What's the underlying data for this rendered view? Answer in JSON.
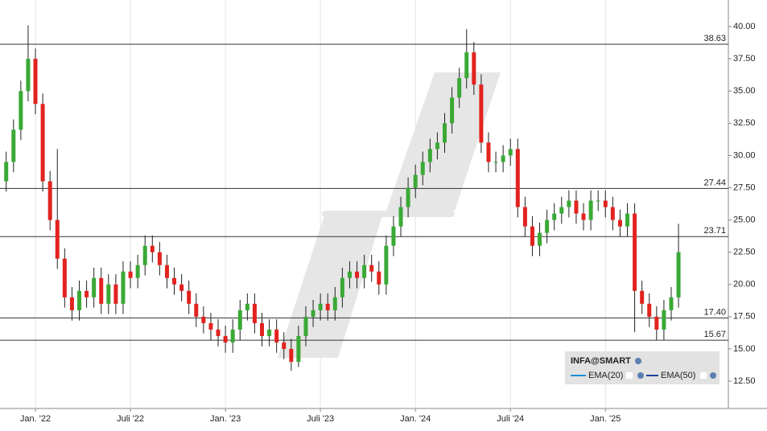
{
  "chart_data": {
    "type": "candlestick",
    "legend_title": "INFA@SMART",
    "indicators": [
      {
        "name": "EMA(20)",
        "color": "#1e8fd8"
      },
      {
        "name": "EMA(50)",
        "color": "#1f3f9e"
      }
    ],
    "up_color": "#3aa935",
    "down_color": "#e2231f",
    "categories": [
      null,
      null,
      null,
      null,
      "Jan. '22",
      null,
      null,
      null,
      null,
      null,
      null,
      null,
      null,
      null,
      null,
      null,
      null,
      "Juli '22",
      null,
      null,
      null,
      null,
      null,
      null,
      null,
      null,
      null,
      null,
      null,
      null,
      "Jan. '23",
      null,
      null,
      null,
      null,
      null,
      null,
      null,
      null,
      null,
      null,
      null,
      null,
      "Juli '23",
      null,
      null,
      null,
      null,
      null,
      null,
      null,
      null,
      null,
      null,
      null,
      null,
      "Jan. '24",
      null,
      null,
      null,
      null,
      null,
      null,
      null,
      null,
      null,
      null,
      null,
      null,
      "Juli '24",
      null,
      null,
      null,
      null,
      null,
      null,
      null,
      null,
      null,
      null,
      null,
      null,
      "Jan. '25",
      null,
      null,
      null,
      null,
      null,
      null,
      null,
      null,
      null,
      null
    ],
    "open": [
      28,
      29.5,
      32,
      35,
      37.5,
      34,
      28,
      25,
      22,
      19,
      18,
      19.5,
      19,
      20.5,
      18.5,
      20,
      18.5,
      21,
      20.5,
      21.5,
      23,
      22.5,
      21.5,
      20.5,
      20,
      19.5,
      18.5,
      17.5,
      17,
      16.5,
      16,
      15.5,
      16.5,
      18,
      18.5,
      17,
      16,
      16.5,
      15.5,
      15,
      14,
      16,
      17.5,
      18,
      18.5,
      18,
      19,
      20.5,
      21,
      20.5,
      21.5,
      21,
      20,
      23,
      24.5,
      26,
      27.5,
      28.5,
      29.5,
      30.5,
      31,
      32.5,
      34.5,
      36,
      38,
      35.5,
      31,
      29.5,
      29.5,
      30,
      30.5,
      26,
      24.5,
      23,
      24,
      25,
      25.5,
      26,
      26.5,
      25.5,
      25,
      26.5,
      26.5,
      26,
      25,
      24.5,
      25.5,
      19.5,
      18.5,
      17.5,
      16.5,
      18,
      19
    ],
    "high": [
      30.3,
      32.8,
      35.8,
      40.1,
      38.3,
      34.8,
      28.8,
      30.5,
      22.8,
      19.8,
      20.3,
      20.3,
      21.3,
      21.3,
      20.8,
      20.8,
      21.8,
      21.8,
      22.3,
      23.8,
      23.8,
      23.3,
      22.3,
      21.3,
      20.8,
      20.3,
      19.3,
      18.3,
      17.8,
      17.3,
      16.8,
      17.3,
      18.8,
      19.3,
      19.3,
      17.8,
      17.3,
      17.3,
      16.3,
      15.8,
      16.8,
      18.3,
      18.8,
      19.3,
      19.3,
      19.8,
      21.3,
      21.8,
      21.8,
      22.3,
      22.3,
      21.8,
      23.8,
      25.3,
      26.8,
      28.3,
      29.3,
      30.3,
      31.3,
      31.8,
      33.3,
      35.3,
      36.8,
      39.8,
      38.8,
      36.3,
      31.8,
      30.3,
      30.8,
      31.3,
      31.3,
      26.8,
      25.3,
      24.8,
      25.8,
      26.3,
      26.8,
      27.3,
      27.3,
      26.3,
      27.3,
      27.3,
      27.3,
      26.8,
      25.8,
      26.3,
      26.3,
      20.3,
      19.3,
      18.3,
      18.8,
      19.8,
      24.7
    ],
    "low": [
      27.2,
      28.7,
      31.2,
      34.2,
      33.2,
      27.2,
      24.2,
      21.2,
      18.2,
      17.2,
      17.2,
      18.2,
      18.2,
      17.7,
      17.7,
      17.7,
      17.7,
      19.7,
      19.7,
      20.7,
      21.7,
      20.7,
      19.7,
      19.2,
      18.7,
      17.7,
      16.7,
      16.2,
      15.7,
      15.2,
      14.7,
      14.7,
      15.7,
      17.2,
      16.2,
      15.2,
      15.2,
      14.7,
      14.2,
      13.3,
      13.6,
      15.2,
      16.7,
      17.2,
      17.2,
      17.2,
      18.2,
      19.7,
      19.7,
      19.7,
      20.2,
      19.2,
      19.2,
      22.2,
      23.7,
      25.2,
      26.7,
      27.7,
      28.7,
      29.7,
      30.2,
      31.7,
      33.7,
      35.2,
      34.7,
      30.2,
      28.7,
      28.7,
      28.7,
      29.2,
      25.2,
      23.7,
      22.2,
      22.2,
      23.2,
      24.2,
      24.7,
      25.2,
      24.7,
      24.2,
      24.2,
      25.7,
      25.2,
      24.2,
      23.7,
      23.7,
      16.3,
      17.7,
      16.7,
      15.7,
      15.7,
      17.2,
      18.2
    ],
    "close": [
      29.5,
      32,
      35,
      37.5,
      34,
      28,
      25,
      22,
      19,
      18,
      19.5,
      19,
      20.5,
      18.5,
      20,
      18.5,
      21,
      20.5,
      21.5,
      23,
      22.5,
      21.5,
      20.5,
      20,
      19.5,
      18.5,
      17.5,
      17,
      16.5,
      16,
      15.5,
      16.5,
      18,
      18.5,
      17,
      16,
      16.5,
      15.5,
      15,
      14,
      16,
      17.5,
      18,
      18.5,
      18,
      19,
      20.5,
      21,
      20.5,
      21.5,
      21,
      20,
      23,
      24.5,
      26,
      27.5,
      28.5,
      29.5,
      30.5,
      31,
      32.5,
      34.5,
      36,
      38,
      35.5,
      31,
      29.5,
      29.5,
      30,
      30.5,
      26,
      24.5,
      23,
      24,
      25,
      25.5,
      26,
      26.5,
      25.5,
      25,
      26.5,
      26.5,
      26,
      25,
      24.5,
      25.5,
      19.5,
      18.5,
      17.5,
      16.5,
      18,
      19,
      22.5
    ],
    "levels": [
      38.63,
      27.44,
      23.71,
      {
        "value": 17.4,
        "label": "17.40"
      },
      15.67
    ],
    "ylim": [
      10.38,
      42.06
    ],
    "yticks": [
      {
        "value": 12.5,
        "label": "12.50"
      },
      {
        "value": 15,
        "label": "15.00"
      },
      {
        "value": 17.5,
        "label": "17.50"
      },
      {
        "value": 20,
        "label": "20.00"
      },
      {
        "value": 22.5,
        "label": "22.50"
      },
      {
        "value": 25,
        "label": "25.00"
      },
      {
        "value": 27.5,
        "label": "27.50"
      },
      {
        "value": 30,
        "label": "30.00"
      },
      {
        "value": 32.5,
        "label": "32.50"
      },
      {
        "value": 35,
        "label": "35.00"
      },
      {
        "value": 37.5,
        "label": "37.50"
      },
      {
        "value": 40,
        "label": "40.00"
      }
    ]
  }
}
